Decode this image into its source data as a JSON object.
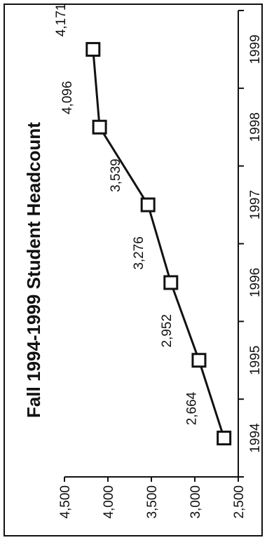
{
  "chart_data": {
    "type": "line",
    "title": "Fall 1994-1999 Student Headcount",
    "xlabel": "",
    "ylabel": "",
    "categories": [
      "1994",
      "1995",
      "1996",
      "1997",
      "1998",
      "1999"
    ],
    "series": [
      {
        "values": [
          2664,
          2952,
          3276,
          3539,
          4096,
          4171
        ],
        "data_labels": [
          "2,664",
          "2,952",
          "3,276",
          "3,539",
          "4,096",
          "4,171"
        ]
      }
    ],
    "ylim": [
      2500,
      4500
    ],
    "yticks": [
      2500,
      3000,
      3500,
      4000,
      4500
    ],
    "ytick_labels": [
      "2,500",
      "3,000",
      "3,500",
      "4,000",
      "4,500"
    ],
    "orientation": "rotated-90-counterclockwise",
    "grid": false,
    "legend": "none",
    "colors": {
      "line": "#111111",
      "marker_fill": "#ffffff",
      "marker_stroke": "#111111",
      "background": "#ffffff"
    }
  }
}
